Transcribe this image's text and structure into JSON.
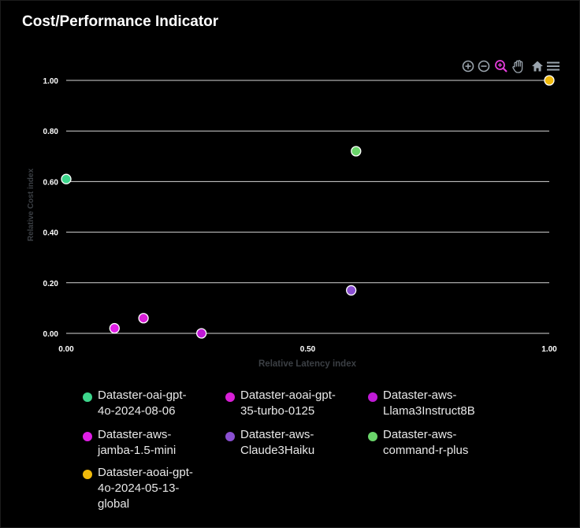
{
  "chart_data": {
    "type": "scatter",
    "title": "Cost/Performance Indicator",
    "xlabel": "Relative Latency index",
    "ylabel": "Relative Cost index",
    "xlim": [
      0,
      1
    ],
    "ylim": [
      0,
      1
    ],
    "x_ticks": [
      "0.00",
      "0.50",
      "1.00"
    ],
    "y_ticks": [
      "0.00",
      "0.20",
      "0.40",
      "0.60",
      "0.80",
      "1.00"
    ],
    "grid": "horizontal",
    "legend_position": "bottom",
    "series": [
      {
        "name": "Dataster-oai-gpt-4o-2024-08-06",
        "color": "#3dd68c",
        "x": 0.0,
        "y": 0.61
      },
      {
        "name": "Dataster-aoai-gpt-35-turbo-0125",
        "color": "#d81fd6",
        "x": 0.16,
        "y": 0.06
      },
      {
        "name": "Dataster-aws-Llama3Instruct8B",
        "color": "#c01ad6",
        "x": 0.28,
        "y": 0.0
      },
      {
        "name": "Dataster-aws-jamba-1.5-mini",
        "color": "#e01ee6",
        "x": 0.1,
        "y": 0.02
      },
      {
        "name": "Dataster-aws-Claude3Haiku",
        "color": "#8a4fd1",
        "x": 0.59,
        "y": 0.17
      },
      {
        "name": "Dataster-aws-command-r-plus",
        "color": "#6ad46a",
        "x": 0.6,
        "y": 0.72
      },
      {
        "name": "Dataster-aoai-gpt-4o-2024-05-13-global",
        "color": "#f0b90b",
        "x": 1.0,
        "y": 1.0
      }
    ]
  },
  "legend_labels": [
    "Dataster-oai-gpt-\n4o-2024-08-06",
    "Dataster-aoai-gpt-\n35-turbo-0125",
    "Dataster-aws-\nLlama3Instruct8B",
    "Dataster-aws-\njamba-1.5-mini",
    "Dataster-aws-\nClaude3Haiku",
    "Dataster-aws-\ncommand-r-plus",
    "Dataster-aoai-gpt-\n4o-2024-05-13-\nglobal"
  ],
  "toolbar": {
    "icons": [
      "zoom-in-icon",
      "zoom-out-icon",
      "zoom-select-icon",
      "pan-icon",
      "home-icon",
      "menu-icon"
    ],
    "colors": {
      "default": "#9aa4ad",
      "active": "#e63cdb"
    }
  }
}
